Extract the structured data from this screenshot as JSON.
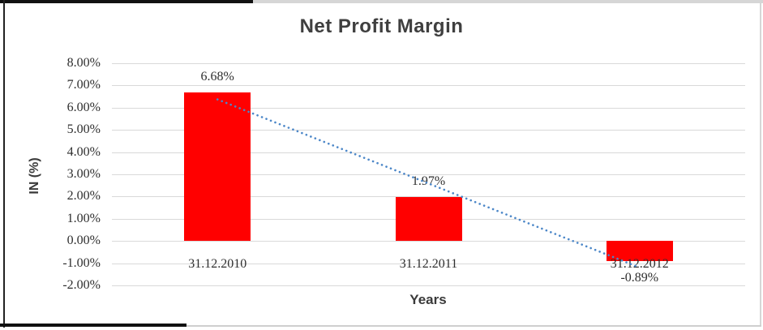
{
  "chart_data": {
    "type": "bar",
    "title": "Net Profit Margin",
    "xlabel": "Years",
    "ylabel": "IN (%)",
    "categories": [
      "31.12.2010",
      "31.12.2011",
      "31.12.2012"
    ],
    "values": [
      6.68,
      1.97,
      -0.89
    ],
    "data_labels": [
      "6.68%",
      "1.97%",
      "-0.89%"
    ],
    "ytick_labels": [
      "8.00%",
      "7.00%",
      "6.00%",
      "5.00%",
      "4.00%",
      "3.00%",
      "2.00%",
      "1.00%",
      "0.00%",
      "-1.00%",
      "-2.00%"
    ],
    "ylim": [
      -2,
      8
    ],
    "grid": true,
    "legend": false,
    "trendline": {
      "type": "linear",
      "style": "dotted"
    },
    "colors": {
      "bar": "#ff0000",
      "trendline": "#4c87c8",
      "gridline": "#d9d9d9",
      "axis_text": "#2e2e2e",
      "title_text": "#3f3f3f"
    }
  }
}
